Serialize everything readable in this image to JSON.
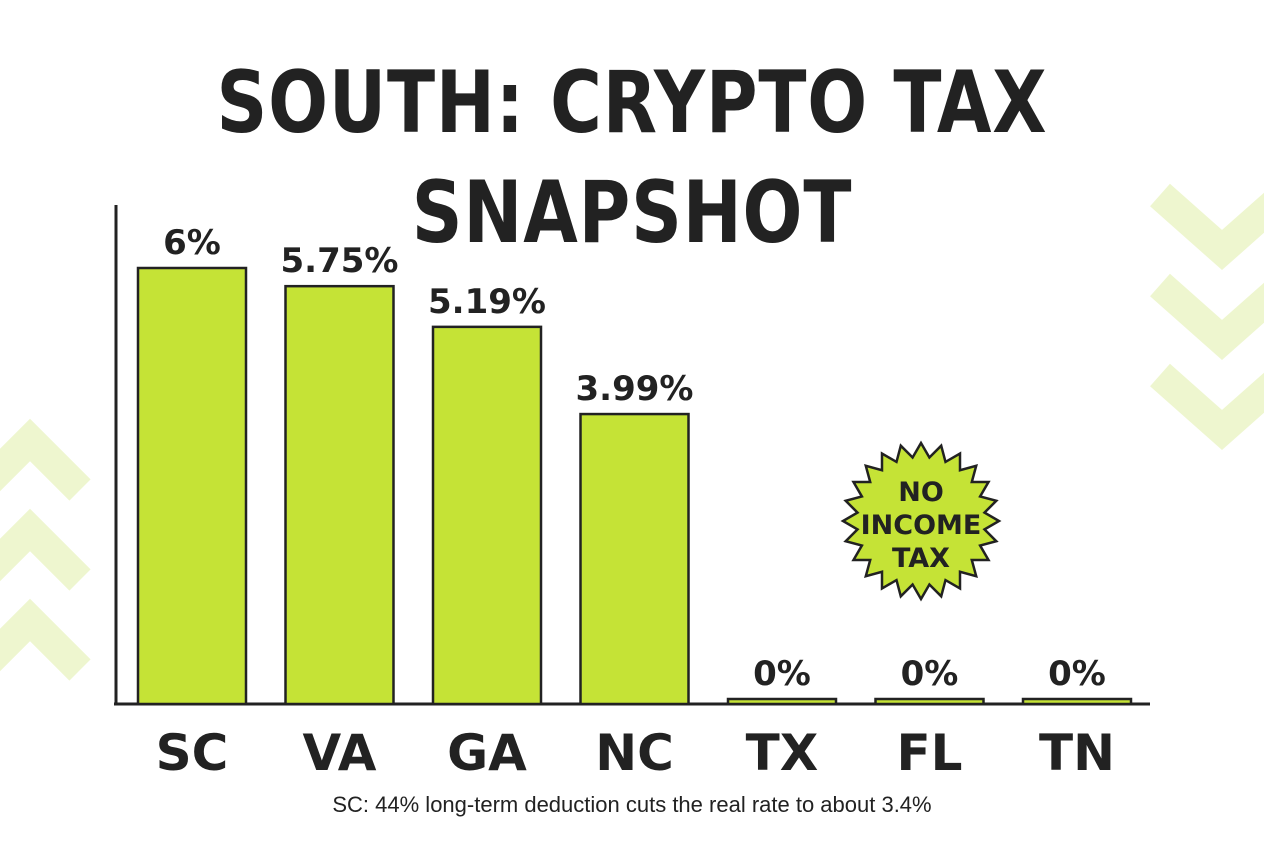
{
  "chart_data": {
    "type": "bar",
    "title": "SOUTH: CRYPTO TAX SNAPSHOT",
    "categories": [
      "SC",
      "VA",
      "GA",
      "NC",
      "TX",
      "FL",
      "TN"
    ],
    "values": [
      6,
      5.75,
      5.19,
      3.99,
      0,
      0,
      0
    ],
    "data_labels": [
      "6%",
      "5.75%",
      "5.19%",
      "3.99%",
      "0%",
      "0%",
      "0%"
    ],
    "ylim": [
      0,
      6
    ],
    "grid": false,
    "annotation": {
      "lines": [
        "NO",
        "INCOME",
        "TAX"
      ],
      "attached_to": [
        "TX",
        "FL",
        "TN"
      ]
    },
    "footnote": "SC: 44% long-term deduction cuts the real rate to about 3.4%"
  },
  "colors": {
    "bar_fill": "#c5e336",
    "outline": "#222222",
    "text": "#222222",
    "chevron_decor": "#eef6cf"
  }
}
